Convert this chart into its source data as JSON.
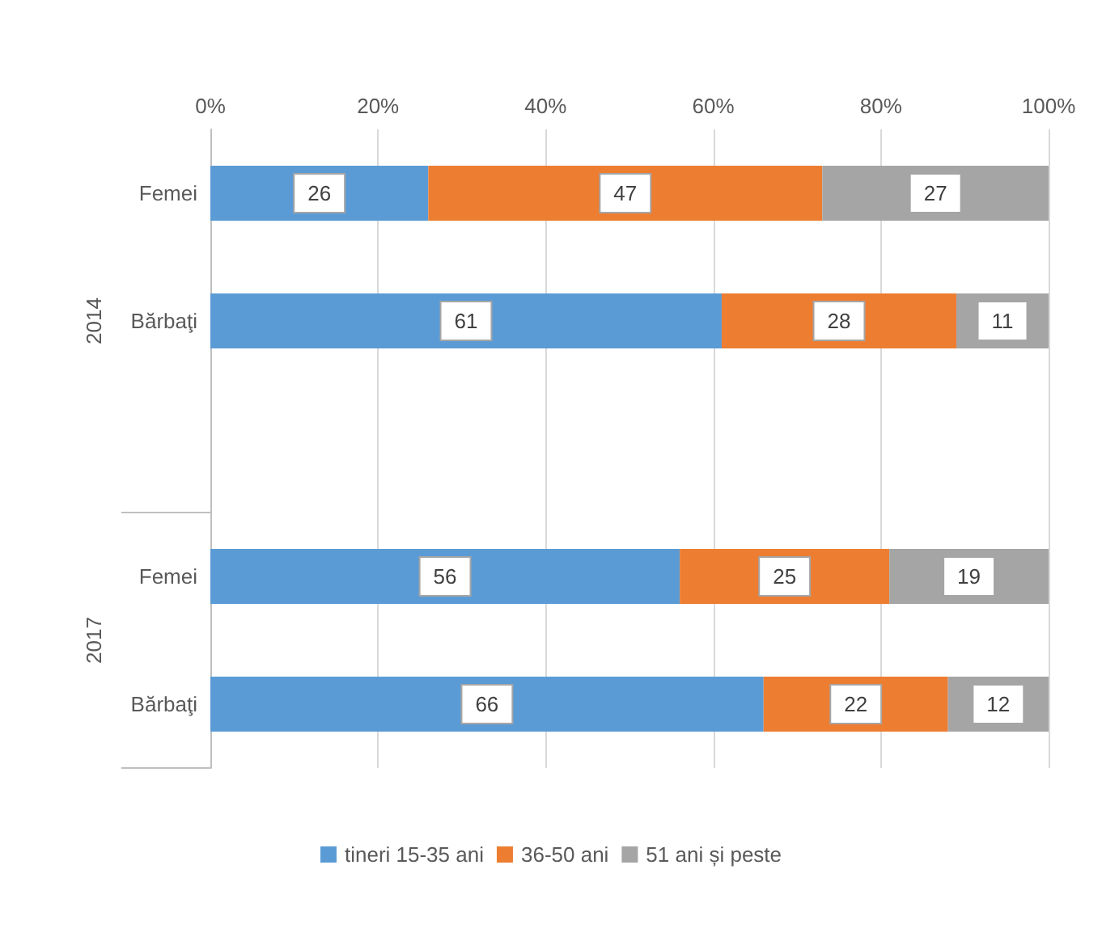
{
  "chart_data": {
    "type": "bar",
    "orientation": "horizontal",
    "stacked": true,
    "categories": [
      "Femei",
      "Bărbaţi",
      null,
      "Femei",
      "Bărbaţi"
    ],
    "series": [
      {
        "name": "tineri 15-35 ani",
        "color": "#5b9bd5",
        "values": [
          26,
          61,
          null,
          56,
          66
        ]
      },
      {
        "name": "36-50 ani",
        "color": "#ed7d31",
        "values": [
          47,
          28,
          null,
          25,
          22
        ]
      },
      {
        "name": "51 ani și peste",
        "color": "#a5a5a5",
        "values": [
          27,
          11,
          null,
          19,
          12
        ]
      }
    ],
    "xlim": [
      0,
      100
    ],
    "xticks": [
      {
        "value": 0,
        "label": "0%"
      },
      {
        "value": 20,
        "label": "20%"
      },
      {
        "value": 40,
        "label": "40%"
      },
      {
        "value": 60,
        "label": "60%"
      },
      {
        "value": 80,
        "label": "80%"
      },
      {
        "value": 100,
        "label": "100%"
      }
    ],
    "grid": "x",
    "legend": "bottom",
    "data_labels": true,
    "annotations": [
      "2014",
      "2017"
    ]
  }
}
